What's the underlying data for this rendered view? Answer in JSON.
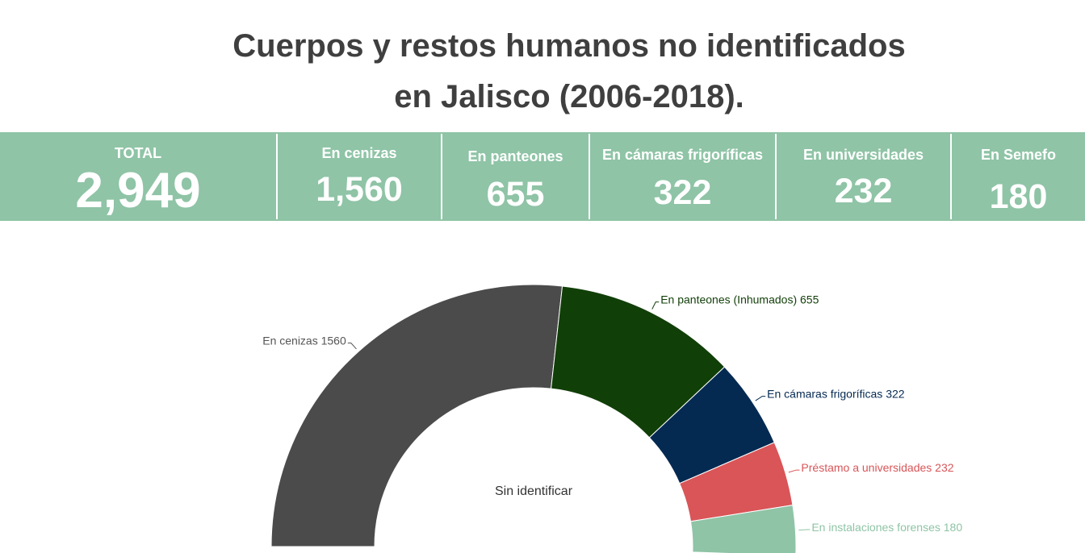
{
  "header": {
    "title_line1": "Cuerpos y restos humanos no identificados",
    "title_line2": "en Jalisco (2006-2018)."
  },
  "stats": [
    {
      "label": "TOTAL",
      "value": "2,949"
    },
    {
      "label": "En cenizas",
      "value": "1,560"
    },
    {
      "label": "En panteones",
      "value": "655"
    },
    {
      "label": "En cámaras frigoríficas",
      "value": "322"
    },
    {
      "label": "En universidades",
      "value": "232"
    },
    {
      "label": "En Semefo",
      "value": "180"
    }
  ],
  "colors": {
    "band": "#8fc4a6",
    "title": "#3f3f3f"
  },
  "chart_data": {
    "type": "pie",
    "variant": "semi-donut",
    "center_label": "Sin identificar",
    "slices": [
      {
        "name": "En cenizas",
        "value": 1560,
        "label": "En cenizas 1560",
        "color": "#4b4b4b",
        "label_color": "#555555"
      },
      {
        "name": "En panteones (Inhumados)",
        "value": 655,
        "label": "En panteones (Inhumados) 655",
        "color": "#113f08",
        "label_color": "#113f08"
      },
      {
        "name": "En cámaras frigoríficas",
        "value": 322,
        "label": "En cámaras frigoríficas 322",
        "color": "#052a52",
        "label_color": "#052a52"
      },
      {
        "name": "Préstamo a universidades",
        "value": 232,
        "label": "Préstamo a universidades 232",
        "color": "#d95558",
        "label_color": "#d95558"
      },
      {
        "name": "En instalaciones forenses",
        "value": 180,
        "label": "En instalaciones forenses 180",
        "color": "#8fc4a6",
        "label_color": "#8fc4a6"
      }
    ]
  }
}
